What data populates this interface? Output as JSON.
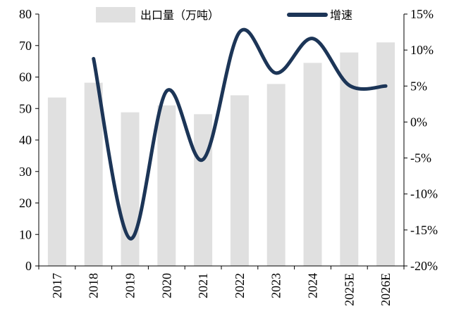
{
  "chart_data": {
    "type": "bar+line",
    "categories": [
      "2017",
      "2018",
      "2019",
      "2020",
      "2021",
      "2022",
      "2023",
      "2024",
      "2025E",
      "2026E"
    ],
    "series": [
      {
        "name": "出口量（万吨）",
        "type": "bar",
        "axis": "left",
        "color": "#e0e0e0",
        "values": [
          53.5,
          58.2,
          48.8,
          51.0,
          48.2,
          54.2,
          57.8,
          64.5,
          67.8,
          71.0
        ]
      },
      {
        "name": "增速",
        "type": "line",
        "axis": "right",
        "color": "#1c3557",
        "values": [
          null,
          8.8,
          -16.2,
          4.3,
          -5.2,
          12.5,
          6.8,
          11.6,
          5.1,
          5.0
        ]
      }
    ],
    "y_left": {
      "min": 0,
      "max": 80,
      "ticks": [
        "0",
        "10",
        "20",
        "30",
        "40",
        "50",
        "60",
        "70",
        "80"
      ]
    },
    "y_right": {
      "min": -20,
      "max": 15,
      "ticks": [
        "-20%",
        "-15%",
        "-10%",
        "-5%",
        "0%",
        "5%",
        "10%",
        "15%"
      ]
    },
    "legend_position": "top",
    "grid": false
  }
}
